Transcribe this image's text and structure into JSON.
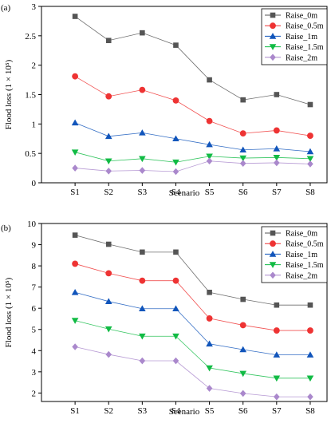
{
  "chart_data": [
    {
      "type": "line",
      "panel_label": "(a)",
      "xlabel": "Scenario",
      "ylabel": "Flood loss (1 × 10⁵)",
      "ylim": [
        0,
        3
      ],
      "yticks": [
        "0",
        "0.5",
        "1",
        "1.5",
        "2",
        "2.5",
        "3"
      ],
      "categories": [
        "S1",
        "S2",
        "S3",
        "S4",
        "S5",
        "S6",
        "S7",
        "S8"
      ],
      "legend_position": "top-right",
      "series": [
        {
          "name": "Raise_0m",
          "color": "#555555",
          "marker": "square",
          "values": [
            2.83,
            2.42,
            2.55,
            2.34,
            1.75,
            1.41,
            1.5,
            1.33
          ]
        },
        {
          "name": "Raise_0.5m",
          "color": "#ee3333",
          "marker": "circle",
          "values": [
            1.81,
            1.47,
            1.58,
            1.4,
            1.05,
            0.84,
            0.89,
            0.8
          ]
        },
        {
          "name": "Raise_1m",
          "color": "#1155bb",
          "marker": "triangle-up",
          "values": [
            1.02,
            0.79,
            0.85,
            0.75,
            0.65,
            0.56,
            0.58,
            0.53
          ]
        },
        {
          "name": "Raise_1.5m",
          "color": "#11bb44",
          "marker": "triangle-down",
          "values": [
            0.52,
            0.37,
            0.41,
            0.35,
            0.45,
            0.42,
            0.43,
            0.41
          ]
        },
        {
          "name": "Raise_2m",
          "color": "#aa88cc",
          "marker": "diamond",
          "values": [
            0.25,
            0.2,
            0.21,
            0.19,
            0.37,
            0.33,
            0.34,
            0.32
          ]
        }
      ]
    },
    {
      "type": "line",
      "panel_label": "(b)",
      "xlabel": "Scenario",
      "ylabel": "Flood loss (1 × 10⁵)",
      "ylim": [
        1.6,
        10
      ],
      "yticks": [
        "2",
        "3",
        "4",
        "5",
        "6",
        "7",
        "8",
        "9",
        "10"
      ],
      "categories": [
        "S1",
        "S2",
        "S3",
        "S4",
        "S5",
        "S6",
        "S7",
        "S8"
      ],
      "legend_position": "top-right",
      "series": [
        {
          "name": "Raise_0m",
          "color": "#555555",
          "marker": "square",
          "values": [
            9.45,
            9.02,
            8.65,
            8.65,
            6.75,
            6.42,
            6.15,
            6.15
          ]
        },
        {
          "name": "Raise_0.5m",
          "color": "#ee3333",
          "marker": "circle",
          "values": [
            8.1,
            7.65,
            7.3,
            7.3,
            5.52,
            5.2,
            4.95,
            4.95
          ]
        },
        {
          "name": "Raise_1m",
          "color": "#1155bb",
          "marker": "triangle-up",
          "values": [
            6.75,
            6.32,
            5.98,
            5.98,
            4.32,
            4.05,
            3.8,
            3.8
          ]
        },
        {
          "name": "Raise_1.5m",
          "color": "#11bb44",
          "marker": "triangle-down",
          "values": [
            5.42,
            5.02,
            4.68,
            4.68,
            3.18,
            2.92,
            2.7,
            2.7
          ]
        },
        {
          "name": "Raise_2m",
          "color": "#aa88cc",
          "marker": "diamond",
          "values": [
            4.18,
            3.82,
            3.52,
            3.52,
            2.22,
            1.98,
            1.82,
            1.82
          ]
        }
      ]
    }
  ]
}
